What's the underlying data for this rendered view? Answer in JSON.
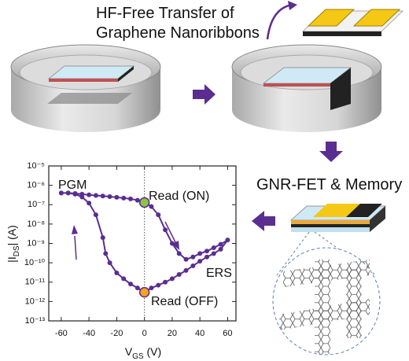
{
  "figure": {
    "title_lines": [
      "HF-Free Transfer of",
      "Graphene Nanoribbons"
    ],
    "step_label": "GNR-FET & Memory"
  },
  "chart_data": {
    "type": "line",
    "log_y": true,
    "color": "#5b2d90",
    "xlabel": [
      "V",
      "GS",
      " (V)"
    ],
    "ylabel": [
      "|I",
      "DS",
      "| (A)"
    ],
    "x": [
      -60,
      -55,
      -50,
      -45,
      -40,
      -35,
      -30,
      -25,
      -20,
      -15,
      -10,
      -5,
      0,
      5,
      10,
      15,
      20,
      25,
      30,
      35,
      40,
      45,
      50,
      55,
      60,
      55,
      50,
      45,
      40,
      35,
      30,
      25,
      20,
      15,
      10,
      5,
      0,
      -5,
      -10,
      -15,
      -20,
      -25,
      -28,
      -30,
      -35,
      -40,
      -45,
      -50,
      -55,
      -60
    ],
    "values": [
      4e-07,
      4e-07,
      3.8e-07,
      3.5e-07,
      3.2e-07,
      3e-07,
      2.8e-07,
      2.6e-07,
      2.4e-07,
      2.2e-07,
      2e-07,
      1.7e-07,
      1.3e-07,
      8e-08,
      3e-08,
      5e-09,
      1e-09,
      3e-10,
      1.5e-10,
      2e-10,
      3e-10,
      4e-10,
      6e-10,
      9e-10,
      1.5e-09,
      5e-10,
      3e-10,
      2e-10,
      1.2e-10,
      7e-11,
      4e-11,
      2.5e-11,
      1.5e-11,
      1e-11,
      7e-12,
      5e-12,
      3e-12,
      5e-12,
      8e-12,
      1.5e-11,
      3e-11,
      1e-10,
      3e-10,
      2e-09,
      3e-08,
      1.2e-07,
      2.5e-07,
      3.5e-07,
      4e-07,
      4e-07
    ],
    "xlim": [
      -69,
      66
    ],
    "xticks": [
      -60,
      -40,
      -20,
      0,
      20,
      40,
      60
    ],
    "ylim": [
      1e-13,
      1e-05
    ],
    "yticks": [
      {
        "value": 1e-05,
        "label": "10⁻⁵"
      },
      {
        "value": 1e-06,
        "label": "10⁻⁶"
      },
      {
        "value": 1e-07,
        "label": "10⁻⁷"
      },
      {
        "value": 1e-08,
        "label": "10⁻⁸"
      },
      {
        "value": 1e-09,
        "label": "10⁻⁹"
      },
      {
        "value": 1e-10,
        "label": "10⁻¹⁰"
      },
      {
        "value": 1e-11,
        "label": "10⁻¹¹"
      },
      {
        "value": 1e-12,
        "label": "10⁻¹²"
      },
      {
        "value": 1e-13,
        "label": "10⁻¹³"
      }
    ],
    "vline": 0,
    "markers": [
      {
        "x": 0,
        "y": 1.3e-07,
        "color": "#8cc63f"
      },
      {
        "x": 0,
        "y": 3e-12,
        "color": "#f7a21b"
      }
    ],
    "annotations": [
      "PGM",
      "Read (ON)",
      "ERS",
      "Read (OFF)"
    ]
  }
}
